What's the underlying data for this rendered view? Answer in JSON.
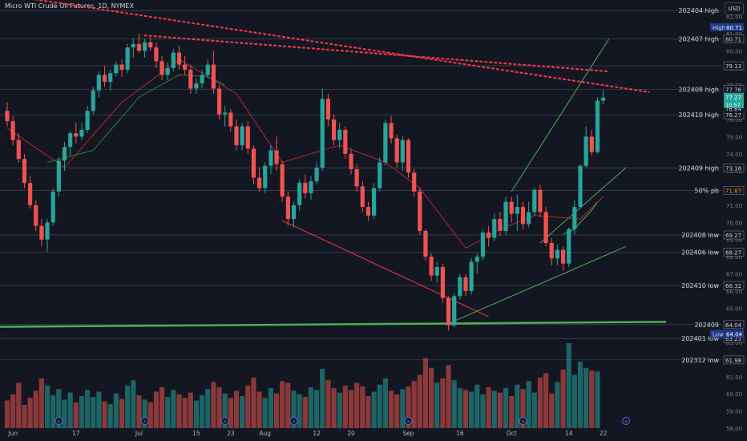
{
  "header": {
    "title": "Micro WTI Crude Oil Futures, 1D, NYMEX",
    "currency": "USD"
  },
  "chart_data": {
    "type": "candlestick",
    "price_range": [
      58,
      82.5
    ],
    "price_ticks": [
      "82.00",
      "81.00",
      "80.00",
      "79.00",
      "78.00",
      "77.00",
      "76.00",
      "75.00",
      "74.00",
      "73.00",
      "72.00",
      "71.00",
      "70.00",
      "69.00",
      "68.00",
      "67.00",
      "66.00",
      "65.00",
      "64.00",
      "63.00",
      "62.00",
      "61.00",
      "60.00",
      "59.00",
      "58.00"
    ],
    "x_labels": [
      {
        "i": 1,
        "label": "Jun"
      },
      {
        "i": 12,
        "label": "17"
      },
      {
        "i": 23,
        "label": "Jul"
      },
      {
        "i": 33,
        "label": "15"
      },
      {
        "i": 39,
        "label": "23"
      },
      {
        "i": 45,
        "label": "Aug"
      },
      {
        "i": 54,
        "label": "12"
      },
      {
        "i": 60,
        "label": "20"
      },
      {
        "i": 70,
        "label": "Sep"
      },
      {
        "i": 79,
        "label": "16"
      },
      {
        "i": 88,
        "label": "Oct"
      },
      {
        "i": 98,
        "label": "14"
      },
      {
        "i": 104,
        "label": "22"
      }
    ],
    "candles": [
      [
        76.5,
        77.0,
        75.6,
        75.9
      ],
      [
        75.9,
        76.2,
        74.5,
        74.8
      ],
      [
        74.8,
        75.2,
        73.5,
        73.7
      ],
      [
        73.7,
        74.0,
        72.0,
        72.3
      ],
      [
        72.3,
        72.7,
        70.8,
        71.0
      ],
      [
        71.0,
        71.3,
        69.5,
        69.8
      ],
      [
        69.8,
        70.2,
        68.6,
        69.0
      ],
      [
        69.0,
        70.2,
        68.3,
        70.0
      ],
      [
        70.0,
        72.0,
        69.8,
        71.8
      ],
      [
        71.8,
        73.8,
        71.5,
        73.6
      ],
      [
        73.6,
        74.7,
        73.0,
        74.4
      ],
      [
        74.4,
        75.3,
        73.9,
        75.2
      ],
      [
        75.2,
        75.8,
        74.6,
        75.0
      ],
      [
        75.0,
        75.8,
        74.8,
        75.4
      ],
      [
        75.4,
        76.8,
        75.2,
        76.5
      ],
      [
        76.5,
        77.9,
        76.3,
        77.7
      ],
      [
        77.7,
        78.8,
        77.3,
        78.6
      ],
      [
        78.6,
        79.1,
        77.9,
        78.2
      ],
      [
        78.2,
        78.9,
        77.7,
        78.7
      ],
      [
        78.7,
        79.4,
        78.5,
        79.2
      ],
      [
        79.2,
        79.5,
        78.5,
        78.9
      ],
      [
        78.9,
        80.4,
        78.7,
        80.2
      ],
      [
        80.2,
        80.7,
        79.6,
        80.4
      ],
      [
        80.4,
        81.0,
        79.9,
        80.0
      ],
      [
        80.0,
        80.7,
        79.6,
        80.5
      ],
      [
        80.5,
        80.8,
        80.0,
        80.2
      ],
      [
        80.2,
        80.5,
        79.0,
        79.4
      ],
      [
        79.4,
        79.7,
        78.3,
        78.6
      ],
      [
        78.6,
        79.3,
        78.3,
        79.0
      ],
      [
        79.0,
        80.1,
        78.8,
        79.9
      ],
      [
        79.9,
        80.3,
        78.9,
        79.2
      ],
      [
        79.2,
        79.7,
        78.6,
        78.9
      ],
      [
        78.9,
        79.2,
        77.5,
        77.8
      ],
      [
        77.8,
        78.4,
        77.5,
        78.1
      ],
      [
        78.1,
        78.9,
        77.8,
        78.6
      ],
      [
        78.6,
        79.5,
        78.4,
        79.2
      ],
      [
        79.2,
        80.0,
        77.5,
        77.8
      ],
      [
        77.8,
        78.0,
        76.0,
        76.3
      ],
      [
        76.3,
        76.8,
        75.6,
        76.4
      ],
      [
        76.4,
        76.6,
        75.3,
        75.6
      ],
      [
        75.6,
        76.0,
        74.2,
        74.5
      ],
      [
        74.5,
        75.8,
        74.2,
        75.6
      ],
      [
        75.6,
        75.9,
        74.0,
        74.3
      ],
      [
        74.3,
        74.5,
        72.2,
        72.6
      ],
      [
        72.6,
        73.2,
        71.8,
        72.0
      ],
      [
        72.0,
        73.5,
        71.7,
        73.3
      ],
      [
        73.3,
        74.5,
        72.8,
        74.2
      ],
      [
        74.2,
        75.0,
        73.0,
        73.4
      ],
      [
        73.4,
        73.6,
        71.2,
        71.5
      ],
      [
        71.5,
        71.8,
        69.8,
        70.2
      ],
      [
        70.2,
        71.2,
        69.7,
        71.0
      ],
      [
        71.0,
        72.5,
        70.7,
        72.3
      ],
      [
        72.3,
        72.8,
        71.4,
        71.7
      ],
      [
        71.7,
        72.7,
        71.3,
        72.4
      ],
      [
        72.4,
        73.5,
        72.2,
        73.2
      ],
      [
        73.2,
        77.8,
        73.0,
        77.2
      ],
      [
        77.2,
        77.5,
        75.6,
        76.0
      ],
      [
        76.0,
        76.3,
        74.5,
        74.8
      ],
      [
        74.8,
        75.8,
        74.3,
        75.4
      ],
      [
        75.4,
        75.6,
        73.7,
        74.0
      ],
      [
        74.0,
        74.3,
        72.8,
        73.1
      ],
      [
        73.1,
        73.4,
        71.8,
        72.1
      ],
      [
        72.1,
        72.4,
        70.6,
        70.9
      ],
      [
        70.9,
        71.2,
        70.1,
        70.4
      ],
      [
        70.4,
        72.3,
        70.2,
        72.0
      ],
      [
        72.0,
        73.8,
        71.8,
        73.5
      ],
      [
        73.5,
        76.0,
        73.3,
        75.8
      ],
      [
        75.8,
        76.2,
        74.6,
        74.9
      ],
      [
        74.9,
        75.1,
        73.2,
        73.5
      ],
      [
        73.5,
        75.0,
        73.0,
        74.8
      ],
      [
        74.8,
        74.9,
        72.6,
        72.9
      ],
      [
        72.9,
        73.1,
        71.5,
        71.8
      ],
      [
        71.8,
        72.0,
        69.3,
        69.5
      ],
      [
        69.5,
        69.6,
        67.8,
        68.0
      ],
      [
        68.0,
        68.2,
        66.6,
        66.9
      ],
      [
        66.9,
        67.7,
        66.5,
        67.4
      ],
      [
        67.4,
        67.6,
        65.3,
        65.6
      ],
      [
        65.6,
        65.7,
        63.7,
        64.0
      ],
      [
        64.0,
        65.9,
        63.9,
        65.7
      ],
      [
        65.7,
        67.0,
        65.5,
        66.8
      ],
      [
        66.8,
        67.0,
        65.7,
        66.0
      ],
      [
        66.0,
        67.9,
        65.8,
        67.7
      ],
      [
        67.7,
        68.2,
        67.0,
        68.0
      ],
      [
        68.0,
        69.6,
        67.8,
        69.4
      ],
      [
        69.4,
        69.8,
        68.6,
        69.1
      ],
      [
        69.1,
        70.5,
        68.9,
        70.2
      ],
      [
        70.2,
        70.6,
        69.2,
        69.5
      ],
      [
        69.5,
        71.5,
        69.3,
        71.2
      ],
      [
        71.2,
        71.5,
        70.0,
        70.5
      ],
      [
        70.5,
        71.6,
        69.5,
        70.9
      ],
      [
        70.9,
        71.2,
        69.6,
        69.9
      ],
      [
        69.9,
        71.2,
        69.7,
        70.6
      ],
      [
        70.6,
        72.0,
        70.4,
        71.9
      ],
      [
        71.9,
        72.2,
        70.3,
        70.6
      ],
      [
        70.6,
        70.9,
        68.6,
        68.8
      ],
      [
        68.8,
        69.1,
        67.5,
        67.9
      ],
      [
        67.9,
        68.7,
        67.5,
        68.4
      ],
      [
        68.4,
        68.6,
        67.2,
        67.6
      ],
      [
        67.6,
        69.7,
        67.4,
        69.6
      ],
      [
        69.6,
        71.3,
        69.3,
        70.9
      ],
      [
        70.9,
        73.4,
        70.8,
        73.3
      ],
      [
        73.3,
        75.6,
        73.2,
        75.0
      ],
      [
        75.0,
        75.4,
        73.9,
        74.1
      ],
      [
        74.1,
        77.3,
        74.0,
        77.1
      ],
      [
        77.1,
        77.7,
        76.9,
        77.27
      ]
    ],
    "volumes": [
      0.35,
      0.42,
      0.55,
      0.3,
      0.38,
      0.46,
      0.6,
      0.52,
      0.41,
      0.48,
      0.36,
      0.44,
      0.33,
      0.4,
      0.47,
      0.39,
      0.45,
      0.34,
      0.31,
      0.43,
      0.37,
      0.52,
      0.58,
      0.41,
      0.36,
      0.33,
      0.45,
      0.5,
      0.39,
      0.47,
      0.42,
      0.38,
      0.44,
      0.35,
      0.41,
      0.48,
      0.56,
      0.5,
      0.43,
      0.38,
      0.46,
      0.4,
      0.52,
      0.61,
      0.45,
      0.38,
      0.49,
      0.43,
      0.57,
      0.55,
      0.46,
      0.42,
      0.39,
      0.5,
      0.47,
      0.71,
      0.58,
      0.49,
      0.44,
      0.52,
      0.47,
      0.55,
      0.51,
      0.4,
      0.45,
      0.53,
      0.6,
      0.46,
      0.42,
      0.48,
      0.51,
      0.57,
      0.64,
      0.83,
      0.72,
      0.55,
      0.6,
      0.75,
      0.58,
      0.49,
      0.47,
      0.45,
      0.53,
      0.42,
      0.5,
      0.46,
      0.44,
      0.49,
      0.4,
      0.53,
      0.48,
      0.57,
      0.44,
      0.61,
      0.66,
      0.43,
      0.56,
      0.7,
      1.0,
      0.64,
      0.79,
      0.72,
      0.69,
      0.68
    ],
    "ma_red": [
      [
        0,
        75.5
      ],
      [
        10,
        73.2
      ],
      [
        20,
        77.0
      ],
      [
        30,
        79.5
      ],
      [
        40,
        77.5
      ],
      [
        48,
        73.5
      ],
      [
        58,
        74.5
      ],
      [
        66,
        73.5
      ],
      [
        72,
        72.0
      ],
      [
        80,
        68.5
      ],
      [
        86,
        69.6
      ],
      [
        92,
        70.4
      ],
      [
        100,
        70.2
      ],
      [
        104,
        71.5
      ]
    ],
    "ma_green": [
      [
        7,
        73.5
      ],
      [
        15,
        74.2
      ],
      [
        23,
        77.3
      ],
      [
        30,
        78.6
      ],
      [
        35,
        78.5
      ],
      [
        38,
        78.0
      ]
    ],
    "ma_green2": [
      [
        97,
        69.3
      ],
      [
        99,
        69.6
      ],
      [
        100,
        70.0
      ],
      [
        102,
        70.7
      ],
      [
        103,
        71.2
      ]
    ],
    "trendlines": [
      {
        "p1": [
          -5,
          83.5
        ],
        "p2": [
          112,
          77.6
        ],
        "color": "#f23645",
        "style": "dotted"
      },
      {
        "p1": [
          24,
          80.9
        ],
        "p2": [
          105,
          78.8
        ],
        "color": "#f23645",
        "style": "dotted"
      },
      {
        "p1": [
          48,
          70.1
        ],
        "p2": [
          84,
          64.5
        ],
        "color": "#f23645",
        "style": "solid"
      },
      {
        "p1": [
          77,
          64.1
        ],
        "p2": [
          108,
          68.6
        ],
        "color": "#4caf50",
        "style": "solid"
      },
      {
        "p1": [
          88,
          71.8
        ],
        "p2": [
          105,
          80.7
        ],
        "color": "#4caf50",
        "style": "solid"
      },
      {
        "p1": [
          93,
          68.8
        ],
        "p2": [
          108,
          73.2
        ],
        "color": "#4caf50",
        "style": "solid"
      }
    ],
    "long_green_line": {
      "p1": [
        -5,
        63.9
      ],
      "p2": [
        115,
        64.2
      ]
    },
    "levels": [
      {
        "price": 82.35,
        "label": "202404 high",
        "value": ""
      },
      {
        "price": 80.71,
        "label": "202407 high",
        "value": "80.71"
      },
      {
        "price": 79.13,
        "label": "",
        "value": "79.13"
      },
      {
        "price": 77.76,
        "label": "202408 high",
        "value": "77.76"
      },
      {
        "price": 76.27,
        "label": "202410 high",
        "value": "76.27"
      },
      {
        "price": 73.18,
        "label": "202409 high",
        "value": "73.18"
      },
      {
        "price": 71.87,
        "label": "50% pb",
        "value": "71.87",
        "value_color": "#ff9800"
      },
      {
        "price": 69.27,
        "label": "202408 low",
        "value": "69.27"
      },
      {
        "price": 68.27,
        "label": "202406 low",
        "value": "68.27"
      },
      {
        "price": 66.32,
        "label": "202410 low",
        "value": "66.32"
      },
      {
        "price": 64.04,
        "label": "202409",
        "value": "64.04"
      },
      {
        "price": 63.23,
        "label": "202401 low",
        "value": "63.23"
      },
      {
        "price": 61.98,
        "label": "202312 low",
        "value": "61.98"
      }
    ],
    "badges": [
      {
        "price": 81.38,
        "text": "High",
        "val": "80.71"
      },
      {
        "price": 63.5,
        "text": "Low",
        "val": "64.04"
      }
    ],
    "last_price": {
      "value": "77.27",
      "countdown": "10:57",
      "price": 77.27
    },
    "extra_value": {
      "value": "76.64",
      "price": 76.64
    },
    "event_markers": [
      9,
      24,
      38,
      50,
      70,
      90,
      108
    ]
  }
}
